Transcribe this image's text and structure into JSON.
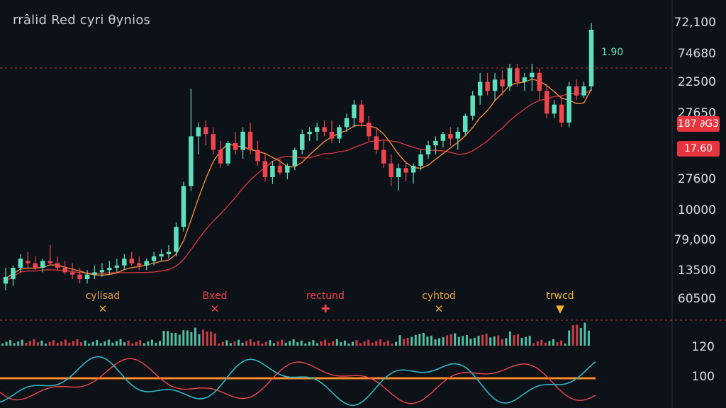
{
  "title": "rrâlid Red cyri θynios",
  "last_price_label": "1.90",
  "price_axis": [
    "72,100",
    "74680",
    "22500",
    "27650",
    "27600",
    "10000",
    "79,000",
    "13500",
    "60500"
  ],
  "badges": [
    {
      "text": "187 ∂G3",
      "color": "#e8343f"
    },
    {
      "text": "17.60",
      "color": "#e8343f"
    }
  ],
  "signals": [
    {
      "label": "cylisad",
      "mark": "✕",
      "color": "#e6a23c"
    },
    {
      "label": "Bxed",
      "mark": "✕",
      "color": "#f0454d"
    },
    {
      "label": "rectund",
      "mark": "✚",
      "color": "#f0454d"
    },
    {
      "label": "cyhtod",
      "mark": "✕",
      "color": "#e6a23c"
    },
    {
      "label": "trwcd",
      "mark": "▼",
      "color": "#f0b429"
    }
  ],
  "indicator_axis": [
    "120",
    "100"
  ],
  "colors": {
    "up": "#5ee0bf",
    "down": "#f0454d",
    "ma_fast": "#ee8a3a",
    "ma_slow": "#d2353c",
    "osc_a": "#2fb7c4",
    "osc_b": "#f0454d",
    "osc_level": "#ff8a2a"
  },
  "chart_data": {
    "type": "candlestick",
    "title": "rrâlid Red cyri θynios",
    "ylim": [
      0,
      100
    ],
    "candles": [
      {
        "o": 3,
        "h": 10,
        "l": 0,
        "c": 6
      },
      {
        "o": 5,
        "h": 11,
        "l": 2,
        "c": 10
      },
      {
        "o": 10,
        "h": 16,
        "l": 8,
        "c": 14
      },
      {
        "o": 13,
        "h": 17,
        "l": 10,
        "c": 12
      },
      {
        "o": 12,
        "h": 15,
        "l": 9,
        "c": 10
      },
      {
        "o": 10,
        "h": 14,
        "l": 8,
        "c": 13
      },
      {
        "o": 13,
        "h": 20,
        "l": 11,
        "c": 12
      },
      {
        "o": 12,
        "h": 15,
        "l": 9,
        "c": 10
      },
      {
        "o": 10,
        "h": 13,
        "l": 7,
        "c": 8
      },
      {
        "o": 8,
        "h": 12,
        "l": 5,
        "c": 7
      },
      {
        "o": 7,
        "h": 10,
        "l": 3,
        "c": 5
      },
      {
        "o": 5,
        "h": 9,
        "l": 3,
        "c": 7
      },
      {
        "o": 7,
        "h": 11,
        "l": 5,
        "c": 8
      },
      {
        "o": 8,
        "h": 12,
        "l": 6,
        "c": 9
      },
      {
        "o": 9,
        "h": 13,
        "l": 7,
        "c": 10
      },
      {
        "o": 10,
        "h": 14,
        "l": 8,
        "c": 11
      },
      {
        "o": 11,
        "h": 16,
        "l": 9,
        "c": 14
      },
      {
        "o": 14,
        "h": 17,
        "l": 11,
        "c": 12
      },
      {
        "o": 12,
        "h": 15,
        "l": 9,
        "c": 11
      },
      {
        "o": 11,
        "h": 14,
        "l": 9,
        "c": 13
      },
      {
        "o": 13,
        "h": 17,
        "l": 11,
        "c": 15
      },
      {
        "o": 15,
        "h": 18,
        "l": 13,
        "c": 16
      },
      {
        "o": 16,
        "h": 20,
        "l": 14,
        "c": 17
      },
      {
        "o": 17,
        "h": 30,
        "l": 15,
        "c": 28
      },
      {
        "o": 28,
        "h": 48,
        "l": 26,
        "c": 46
      },
      {
        "o": 46,
        "h": 89,
        "l": 44,
        "c": 68
      },
      {
        "o": 68,
        "h": 74,
        "l": 60,
        "c": 72
      },
      {
        "o": 72,
        "h": 75,
        "l": 64,
        "c": 69
      },
      {
        "o": 69,
        "h": 72,
        "l": 60,
        "c": 62
      },
      {
        "o": 62,
        "h": 66,
        "l": 54,
        "c": 56
      },
      {
        "o": 56,
        "h": 66,
        "l": 55,
        "c": 65
      },
      {
        "o": 65,
        "h": 70,
        "l": 60,
        "c": 62
      },
      {
        "o": 62,
        "h": 72,
        "l": 58,
        "c": 70
      },
      {
        "o": 70,
        "h": 74,
        "l": 60,
        "c": 62
      },
      {
        "o": 62,
        "h": 66,
        "l": 55,
        "c": 57
      },
      {
        "o": 57,
        "h": 60,
        "l": 48,
        "c": 50
      },
      {
        "o": 50,
        "h": 57,
        "l": 47,
        "c": 55
      },
      {
        "o": 55,
        "h": 58,
        "l": 51,
        "c": 52
      },
      {
        "o": 52,
        "h": 56,
        "l": 49,
        "c": 55
      },
      {
        "o": 55,
        "h": 63,
        "l": 53,
        "c": 62
      },
      {
        "o": 62,
        "h": 71,
        "l": 60,
        "c": 69
      },
      {
        "o": 69,
        "h": 72,
        "l": 66,
        "c": 70
      },
      {
        "o": 70,
        "h": 74,
        "l": 66,
        "c": 72
      },
      {
        "o": 72,
        "h": 75,
        "l": 68,
        "c": 70
      },
      {
        "o": 70,
        "h": 75,
        "l": 65,
        "c": 67
      },
      {
        "o": 67,
        "h": 73,
        "l": 65,
        "c": 72
      },
      {
        "o": 72,
        "h": 78,
        "l": 70,
        "c": 76
      },
      {
        "o": 76,
        "h": 84,
        "l": 72,
        "c": 82
      },
      {
        "o": 82,
        "h": 84,
        "l": 72,
        "c": 74
      },
      {
        "o": 74,
        "h": 77,
        "l": 66,
        "c": 68
      },
      {
        "o": 68,
        "h": 72,
        "l": 60,
        "c": 62
      },
      {
        "o": 62,
        "h": 66,
        "l": 54,
        "c": 56
      },
      {
        "o": 56,
        "h": 60,
        "l": 46,
        "c": 50
      },
      {
        "o": 50,
        "h": 56,
        "l": 44,
        "c": 54
      },
      {
        "o": 54,
        "h": 57,
        "l": 48,
        "c": 52
      },
      {
        "o": 52,
        "h": 56,
        "l": 47,
        "c": 55
      },
      {
        "o": 55,
        "h": 62,
        "l": 53,
        "c": 60
      },
      {
        "o": 60,
        "h": 66,
        "l": 58,
        "c": 64
      },
      {
        "o": 64,
        "h": 68,
        "l": 60,
        "c": 66
      },
      {
        "o": 66,
        "h": 70,
        "l": 63,
        "c": 69
      },
      {
        "o": 69,
        "h": 72,
        "l": 64,
        "c": 67
      },
      {
        "o": 67,
        "h": 72,
        "l": 62,
        "c": 70
      },
      {
        "o": 70,
        "h": 78,
        "l": 68,
        "c": 77
      },
      {
        "o": 77,
        "h": 88,
        "l": 75,
        "c": 86
      },
      {
        "o": 86,
        "h": 96,
        "l": 82,
        "c": 92
      },
      {
        "o": 92,
        "h": 96,
        "l": 86,
        "c": 88
      },
      {
        "o": 88,
        "h": 96,
        "l": 84,
        "c": 93
      },
      {
        "o": 93,
        "h": 97,
        "l": 86,
        "c": 90
      },
      {
        "o": 90,
        "h": 100,
        "l": 88,
        "c": 98
      },
      {
        "o": 98,
        "h": 100,
        "l": 90,
        "c": 92
      },
      {
        "o": 92,
        "h": 96,
        "l": 88,
        "c": 94
      },
      {
        "o": 94,
        "h": 100,
        "l": 88,
        "c": 96
      },
      {
        "o": 96,
        "h": 98,
        "l": 84,
        "c": 88
      },
      {
        "o": 88,
        "h": 91,
        "l": 76,
        "c": 78
      },
      {
        "o": 78,
        "h": 84,
        "l": 76,
        "c": 82
      },
      {
        "o": 82,
        "h": 86,
        "l": 72,
        "c": 74
      },
      {
        "o": 74,
        "h": 92,
        "l": 72,
        "c": 90
      },
      {
        "o": 90,
        "h": 93,
        "l": 84,
        "c": 86
      },
      {
        "o": 86,
        "h": 92,
        "l": 85,
        "c": 90
      },
      {
        "o": 90,
        "h": 118,
        "l": 88,
        "c": 115
      }
    ]
  }
}
